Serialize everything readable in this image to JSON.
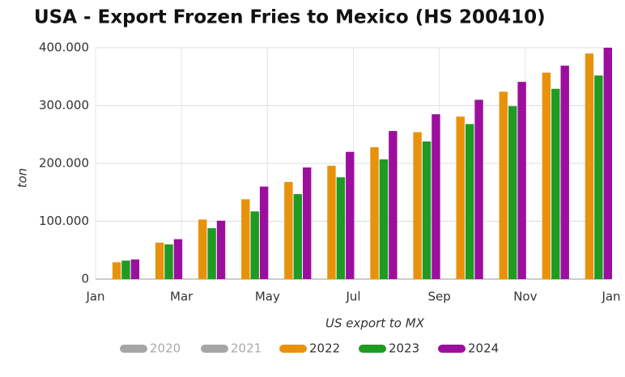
{
  "chart_data": {
    "type": "bar",
    "title": "USA - Export Frozen Fries to Mexico (HS 200410)",
    "y_label": "ton",
    "x_label": "US export to MX",
    "x": [
      1,
      2,
      3,
      4,
      5,
      6,
      7,
      8,
      9,
      10,
      11,
      12
    ],
    "xlim": [
      0,
      12
    ],
    "xticks": [
      {
        "value": 0,
        "label": "Jan"
      },
      {
        "value": 2,
        "label": "Mar"
      },
      {
        "value": 4,
        "label": "May"
      },
      {
        "value": 6,
        "label": "Jul"
      },
      {
        "value": 8,
        "label": "Sep"
      },
      {
        "value": 10,
        "label": "Nov"
      },
      {
        "value": 12,
        "label": "Jan"
      }
    ],
    "ylim": [
      0,
      400000
    ],
    "yticks": [
      0,
      {
        "value": 100000,
        "label": "100.000"
      },
      {
        "value": 200000,
        "label": "200.000"
      },
      {
        "value": 300000,
        "label": "300.000"
      },
      {
        "value": 400000,
        "label": "400.000"
      }
    ],
    "grid": true,
    "legend": "bottom",
    "series": [
      {
        "name": "2020",
        "color": "#a6a6a6",
        "visible": false,
        "values": [
          null,
          null,
          null,
          null,
          null,
          null,
          null,
          null,
          null,
          null,
          null,
          null
        ]
      },
      {
        "name": "2021",
        "color": "#a6a6a6",
        "visible": false,
        "values": [
          null,
          null,
          null,
          null,
          null,
          null,
          null,
          null,
          null,
          null,
          null,
          null
        ]
      },
      {
        "name": "2022",
        "color": "#e8920c",
        "visible": true,
        "values": [
          29000,
          63000,
          103000,
          138000,
          168000,
          196000,
          228000,
          254000,
          281000,
          324000,
          357000,
          390000
        ]
      },
      {
        "name": "2023",
        "color": "#1f9a22",
        "visible": true,
        "values": [
          32000,
          60000,
          88000,
          117000,
          147000,
          176000,
          207000,
          238000,
          268000,
          299000,
          329000,
          352000
        ]
      },
      {
        "name": "2024",
        "color": "#9c0f9e",
        "visible": true,
        "values": [
          34000,
          69000,
          101000,
          160000,
          193000,
          220000,
          256000,
          285000,
          310000,
          341000,
          369000,
          400000
        ]
      }
    ]
  }
}
